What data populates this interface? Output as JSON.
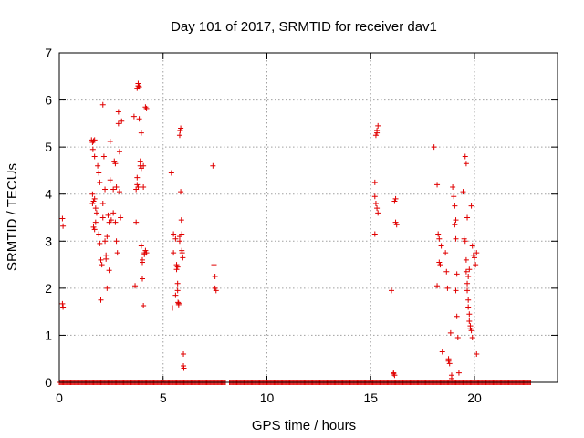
{
  "chart_data": {
    "type": "scatter",
    "title": "Day 101 of 2017, SRMTID for receiver dav1",
    "xlabel": "GPS time / hours",
    "ylabel": "SRMTID / TECUs",
    "xlim": [
      0,
      24
    ],
    "ylim": [
      0,
      7
    ],
    "xticks": [
      0,
      5,
      10,
      15,
      20
    ],
    "yticks": [
      0,
      1,
      2,
      3,
      4,
      5,
      6,
      7
    ],
    "grid": true,
    "marker": "plus",
    "color": "#e00000",
    "zero_segments": [
      [
        0.0,
        8.0
      ],
      [
        8.2,
        22.7
      ]
    ],
    "zero_step": 0.05,
    "series": [
      {
        "name": "SRMTID",
        "points": [
          [
            0.15,
            3.48
          ],
          [
            0.18,
            3.32
          ],
          [
            0.15,
            1.67
          ],
          [
            0.18,
            1.6
          ],
          [
            1.55,
            5.15
          ],
          [
            1.6,
            5.1
          ],
          [
            1.65,
            5.13
          ],
          [
            1.7,
            5.15
          ],
          [
            1.62,
            4.95
          ],
          [
            1.7,
            4.8
          ],
          [
            1.6,
            4.0
          ],
          [
            1.65,
            3.85
          ],
          [
            1.6,
            3.8
          ],
          [
            1.7,
            3.9
          ],
          [
            1.75,
            3.7
          ],
          [
            1.8,
            3.6
          ],
          [
            1.65,
            3.3
          ],
          [
            1.7,
            3.25
          ],
          [
            1.75,
            3.4
          ],
          [
            1.85,
            4.6
          ],
          [
            1.9,
            4.45
          ],
          [
            1.95,
            4.25
          ],
          [
            1.9,
            3.15
          ],
          [
            1.95,
            2.95
          ],
          [
            2.0,
            2.6
          ],
          [
            2.05,
            2.5
          ],
          [
            2.0,
            1.75
          ],
          [
            2.1,
            3.5
          ],
          [
            2.1,
            3.8
          ],
          [
            2.15,
            4.8
          ],
          [
            2.1,
            5.9
          ],
          [
            2.2,
            4.1
          ],
          [
            2.2,
            3.0
          ],
          [
            2.25,
            2.7
          ],
          [
            2.25,
            2.62
          ],
          [
            2.3,
            2.0
          ],
          [
            2.3,
            3.1
          ],
          [
            2.35,
            3.55
          ],
          [
            2.4,
            3.4
          ],
          [
            2.4,
            2.38
          ],
          [
            2.45,
            4.3
          ],
          [
            2.45,
            5.12
          ],
          [
            2.5,
            3.45
          ],
          [
            2.6,
            3.6
          ],
          [
            2.6,
            4.1
          ],
          [
            2.65,
            4.7
          ],
          [
            2.7,
            4.65
          ],
          [
            2.75,
            4.15
          ],
          [
            2.7,
            3.4
          ],
          [
            2.75,
            3.0
          ],
          [
            2.8,
            2.75
          ],
          [
            2.85,
            5.75
          ],
          [
            2.85,
            5.5
          ],
          [
            2.9,
            4.9
          ],
          [
            2.9,
            4.05
          ],
          [
            2.95,
            3.5
          ],
          [
            3.0,
            5.55
          ],
          [
            3.6,
            5.65
          ],
          [
            3.65,
            2.05
          ],
          [
            3.7,
            3.4
          ],
          [
            3.7,
            4.1
          ],
          [
            3.75,
            4.2
          ],
          [
            3.75,
            4.35
          ],
          [
            3.75,
            6.25
          ],
          [
            3.8,
            6.3
          ],
          [
            3.8,
            6.35
          ],
          [
            3.85,
            6.28
          ],
          [
            3.85,
            5.6
          ],
          [
            3.8,
            4.15
          ],
          [
            3.9,
            4.6
          ],
          [
            3.9,
            4.7
          ],
          [
            3.95,
            5.3
          ],
          [
            3.95,
            4.55
          ],
          [
            3.95,
            2.9
          ],
          [
            4.0,
            2.6
          ],
          [
            4.0,
            2.55
          ],
          [
            4.0,
            2.2
          ],
          [
            4.05,
            4.6
          ],
          [
            4.05,
            4.15
          ],
          [
            4.1,
            2.75
          ],
          [
            4.1,
            2.72
          ],
          [
            4.15,
            2.8
          ],
          [
            4.15,
            5.85
          ],
          [
            4.2,
            5.82
          ],
          [
            4.2,
            2.75
          ],
          [
            4.05,
            1.63
          ],
          [
            5.4,
            4.45
          ],
          [
            5.45,
            1.58
          ],
          [
            5.5,
            3.15
          ],
          [
            5.5,
            2.75
          ],
          [
            5.6,
            1.85
          ],
          [
            5.6,
            3.05
          ],
          [
            5.65,
            2.5
          ],
          [
            5.65,
            2.4
          ],
          [
            5.7,
            2.1
          ],
          [
            5.7,
            1.95
          ],
          [
            5.72,
            1.7
          ],
          [
            5.75,
            1.65
          ],
          [
            5.75,
            1.68
          ],
          [
            5.8,
            3.0
          ],
          [
            5.8,
            3.1
          ],
          [
            5.8,
            5.25
          ],
          [
            5.82,
            5.35
          ],
          [
            5.85,
            5.4
          ],
          [
            5.85,
            4.05
          ],
          [
            5.88,
            3.45
          ],
          [
            5.9,
            3.15
          ],
          [
            5.9,
            2.8
          ],
          [
            5.92,
            2.75
          ],
          [
            5.95,
            2.65
          ],
          [
            5.98,
            0.6
          ],
          [
            5.98,
            0.35
          ],
          [
            6.0,
            0.3
          ],
          [
            5.7,
            2.45
          ],
          [
            7.4,
            4.6
          ],
          [
            7.45,
            2.5
          ],
          [
            7.5,
            2.25
          ],
          [
            7.5,
            2.0
          ],
          [
            7.55,
            1.95
          ],
          [
            15.25,
            5.25
          ],
          [
            15.3,
            5.35
          ],
          [
            15.35,
            5.45
          ],
          [
            15.3,
            5.3
          ],
          [
            15.2,
            4.25
          ],
          [
            15.2,
            3.95
          ],
          [
            15.25,
            3.8
          ],
          [
            15.3,
            3.7
          ],
          [
            15.35,
            3.6
          ],
          [
            15.2,
            3.15
          ],
          [
            16.0,
            1.95
          ],
          [
            16.1,
            0.2
          ],
          [
            16.15,
            0.15
          ],
          [
            16.1,
            0.18
          ],
          [
            16.2,
            3.9
          ],
          [
            16.15,
            3.85
          ],
          [
            16.25,
            3.35
          ],
          [
            16.2,
            3.4
          ],
          [
            18.05,
            5.0
          ],
          [
            18.2,
            4.2
          ],
          [
            18.25,
            3.15
          ],
          [
            18.3,
            3.05
          ],
          [
            18.3,
            2.55
          ],
          [
            18.35,
            2.5
          ],
          [
            18.4,
            2.9
          ],
          [
            18.2,
            2.05
          ],
          [
            18.45,
            0.65
          ],
          [
            18.6,
            2.75
          ],
          [
            18.65,
            2.35
          ],
          [
            18.75,
            0.5
          ],
          [
            18.75,
            0.45
          ],
          [
            18.8,
            0.4
          ],
          [
            18.7,
            2.0
          ],
          [
            18.85,
            1.05
          ],
          [
            18.9,
            0.15
          ],
          [
            18.9,
            0.08
          ],
          [
            18.95,
            4.15
          ],
          [
            19.0,
            3.95
          ],
          [
            19.05,
            3.75
          ],
          [
            19.1,
            3.45
          ],
          [
            19.05,
            3.35
          ],
          [
            19.1,
            3.05
          ],
          [
            19.15,
            2.3
          ],
          [
            19.1,
            1.95
          ],
          [
            19.15,
            1.4
          ],
          [
            19.2,
            0.95
          ],
          [
            19.25,
            0.2
          ],
          [
            19.45,
            4.05
          ],
          [
            19.55,
            4.8
          ],
          [
            19.6,
            4.65
          ],
          [
            19.5,
            3.05
          ],
          [
            19.55,
            3.0
          ],
          [
            19.6,
            2.6
          ],
          [
            19.6,
            2.35
          ],
          [
            19.65,
            2.1
          ],
          [
            19.65,
            1.95
          ],
          [
            19.7,
            1.75
          ],
          [
            19.7,
            1.6
          ],
          [
            19.75,
            1.45
          ],
          [
            19.75,
            1.3
          ],
          [
            19.8,
            1.2
          ],
          [
            19.8,
            1.15
          ],
          [
            19.85,
            1.1
          ],
          [
            19.9,
            0.95
          ],
          [
            19.85,
            3.75
          ],
          [
            19.9,
            2.9
          ],
          [
            19.95,
            2.7
          ],
          [
            20.0,
            2.65
          ],
          [
            20.05,
            2.5
          ],
          [
            20.1,
            2.75
          ],
          [
            19.7,
            2.25
          ],
          [
            19.75,
            2.4
          ],
          [
            20.1,
            0.6
          ],
          [
            19.65,
            3.5
          ]
        ]
      }
    ]
  }
}
